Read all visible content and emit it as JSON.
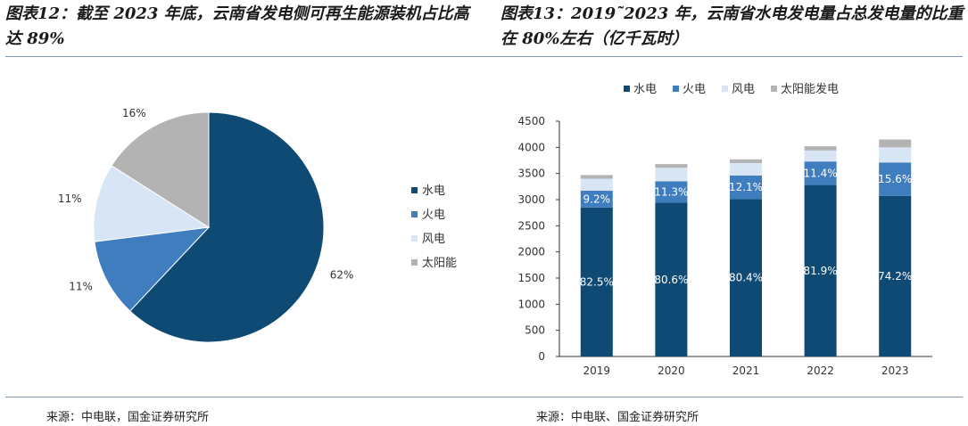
{
  "left_panel": {
    "title": "图表12：截至 2023 年底，云南省发电侧可再生能源装机占比高达 89%",
    "source": "来源：中电联，国金证券研究所"
  },
  "right_panel": {
    "title": "图表13：2019˜2023 年，云南省水电发电量占总发电量的比重在 80%左右（亿千瓦时）",
    "source": "来源：中电联、国金证券研究所"
  },
  "chart_data": [
    {
      "type": "pie",
      "categories": [
        "水电",
        "火电",
        "风电",
        "太阳能"
      ],
      "values": [
        62,
        11,
        11,
        16
      ],
      "labels": [
        "62%",
        "11%",
        "11%",
        "16%"
      ],
      "colors": [
        "#0e4a73",
        "#3f7dbf",
        "#d7e5f4",
        "#b3b3b3"
      ],
      "legend_position": "right"
    },
    {
      "type": "bar",
      "stacked": true,
      "categories": [
        "2019",
        "2020",
        "2021",
        "2022",
        "2023"
      ],
      "series": [
        {
          "name": "水电",
          "values": [
            2850,
            2940,
            3010,
            3280,
            3070
          ],
          "color": "#0e4a73",
          "labels": [
            "82.5%",
            "80.6%",
            "80.4%",
            "81.9%",
            "74.2%"
          ]
        },
        {
          "name": "火电",
          "values": [
            320,
            410,
            450,
            450,
            640
          ],
          "color": "#3f7dbf",
          "labels": [
            "9.2%",
            "11.3%",
            "12.1%",
            "11.4%",
            "15.6%"
          ]
        },
        {
          "name": "风电",
          "values": [
            230,
            260,
            240,
            210,
            290
          ],
          "color": "#d7e5f4"
        },
        {
          "name": "太阳能发电",
          "values": [
            70,
            70,
            70,
            80,
            150
          ],
          "color": "#b3b3b3"
        }
      ],
      "ylim": [
        0,
        4500
      ],
      "yticks": [
        0,
        500,
        1000,
        1500,
        2000,
        2500,
        3000,
        3500,
        4000,
        4500
      ],
      "grid": false,
      "legend_position": "top"
    }
  ]
}
